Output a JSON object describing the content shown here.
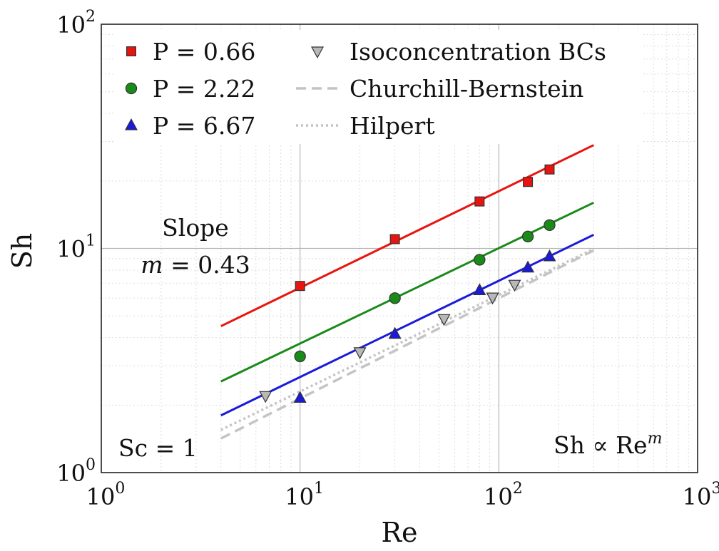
{
  "chart_data": {
    "type": "scatter",
    "xscale": "log",
    "yscale": "log",
    "xlim": [
      1,
      1000
    ],
    "ylim": [
      1,
      100
    ],
    "grid": true,
    "xlabel": "Re",
    "ylabel": "Sh",
    "x_ticks": [
      {
        "base": "10",
        "exp": "0"
      },
      {
        "base": "10",
        "exp": "1"
      },
      {
        "base": "10",
        "exp": "2"
      },
      {
        "base": "10",
        "exp": "3"
      }
    ],
    "y_ticks": [
      {
        "base": "10",
        "exp": "0"
      },
      {
        "base": "10",
        "exp": "1"
      },
      {
        "base": "10",
        "exp": "2"
      }
    ],
    "legend_position": "top-left",
    "series": [
      {
        "name": "P = 0.66",
        "marker": "square",
        "color": "#e8140f",
        "points": [
          [
            10,
            6.8
          ],
          [
            30,
            11.0
          ],
          [
            80,
            16.2
          ],
          [
            140,
            19.8
          ],
          [
            180,
            22.5
          ]
        ]
      },
      {
        "name": "P = 2.22",
        "marker": "circle",
        "color": "#1a8a1a",
        "points": [
          [
            10,
            3.3
          ],
          [
            30,
            6.0
          ],
          [
            80,
            8.9
          ],
          [
            140,
            11.3
          ],
          [
            180,
            12.7
          ]
        ]
      },
      {
        "name": "P = 6.67",
        "marker": "triangle-up",
        "color": "#1a1adc",
        "points": [
          [
            10,
            2.15
          ],
          [
            30,
            4.15
          ],
          [
            80,
            6.5
          ],
          [
            140,
            8.2
          ],
          [
            180,
            9.2
          ]
        ]
      },
      {
        "name": "Isoconcentration BCs",
        "marker": "triangle-down",
        "color": "#b8b8b8",
        "points": [
          [
            6.7,
            2.2
          ],
          [
            20,
            3.45
          ],
          [
            53,
            4.85
          ],
          [
            93,
            6.05
          ],
          [
            120,
            6.9
          ]
        ]
      },
      {
        "name": "Churchill-Bernstein",
        "line": "dashed",
        "color": "#c4c4c4",
        "points": [
          [
            4,
            1.42
          ],
          [
            300,
            9.8
          ]
        ]
      },
      {
        "name": "Hilpert",
        "line": "dotted",
        "color": "#c4c4c4",
        "points": [
          [
            4,
            1.55
          ],
          [
            300,
            9.95
          ]
        ]
      }
    ],
    "fit_lines": [
      {
        "color": "#e8140f",
        "points": [
          [
            4,
            4.5
          ],
          [
            300,
            28.9
          ]
        ]
      },
      {
        "color": "#1a8a1a",
        "points": [
          [
            4,
            2.55
          ],
          [
            300,
            16.0
          ]
        ]
      },
      {
        "color": "#1a1adc",
        "points": [
          [
            4,
            1.8
          ],
          [
            300,
            11.5
          ]
        ]
      }
    ],
    "annotations": {
      "slope_label": "Slope",
      "slope_value": "m = 0.43",
      "sc_label": "Sc = 1",
      "proportionality": "Sh ∝ Re",
      "proportionality_exp": "m"
    }
  }
}
